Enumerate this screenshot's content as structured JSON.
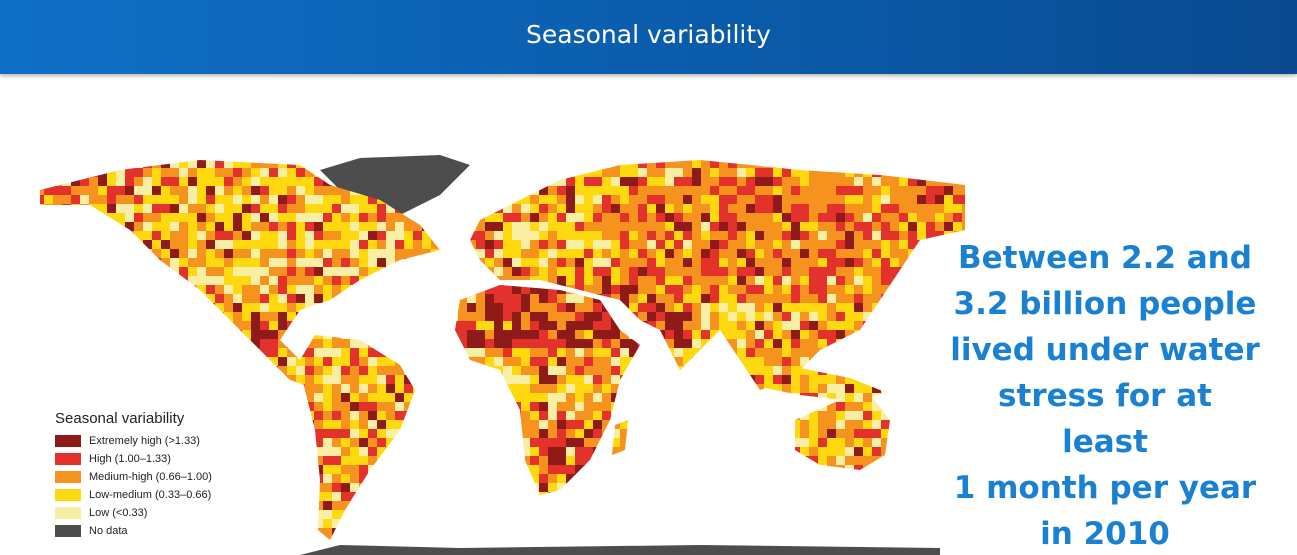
{
  "header": {
    "title": "Seasonal variability"
  },
  "legend": {
    "title": "Seasonal variability",
    "items": [
      {
        "label": "Extremely high (>1.33)",
        "color": "#8e1b17"
      },
      {
        "label": "High (1.00–1.33)",
        "color": "#e3312b"
      },
      {
        "label": "Medium-high (0.66–1.00)",
        "color": "#f6921e"
      },
      {
        "label": "Low-medium (0.33–0.66)",
        "color": "#ffd90f"
      },
      {
        "label": "Low (<0.33)",
        "color": "#f8eea4"
      },
      {
        "label": "No data",
        "color": "#4d4d4d"
      }
    ]
  },
  "callout": {
    "lines": [
      "Between 2.2 and",
      "3.2 billion people",
      "lived under water",
      "stress for at least",
      "1 month per year",
      "in 2010"
    ]
  }
}
